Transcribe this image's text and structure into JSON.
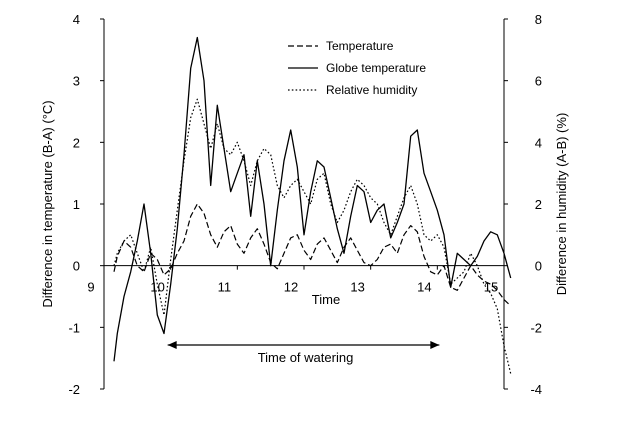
{
  "chart_data": {
    "type": "line",
    "title": "",
    "xlabel": "Time",
    "ylabel_left": "Difference in temperature (B-A) (°C)",
    "ylabel_right": "Difference in humidity (A-B) (%)",
    "xlim": [
      9,
      15
    ],
    "ylim_left": [
      -2,
      4
    ],
    "ylim_right": [
      -4,
      8
    ],
    "x_ticks": [
      9,
      10,
      11,
      12,
      13,
      14,
      15
    ],
    "y_ticks_left": [
      -2,
      -1,
      0,
      1,
      2,
      3,
      4
    ],
    "y_ticks_right": [
      -4,
      -2,
      0,
      2,
      4,
      6,
      8
    ],
    "grid": false,
    "legend_position": "top-right",
    "annotation": {
      "text": "Time of watering",
      "start": 10.0,
      "end": 14.0
    },
    "series": [
      {
        "name": "Temperature",
        "axis": "left",
        "style": "dashed",
        "color": "#000000",
        "x": [
          9.15,
          9.2,
          9.3,
          9.4,
          9.5,
          9.6,
          9.7,
          9.8,
          9.9,
          10.0,
          10.1,
          10.2,
          10.3,
          10.4,
          10.5,
          10.6,
          10.7,
          10.8,
          10.9,
          11.0,
          11.1,
          11.2,
          11.3,
          11.4,
          11.5,
          11.6,
          11.7,
          11.8,
          11.9,
          12.0,
          12.1,
          12.2,
          12.3,
          12.4,
          12.5,
          12.6,
          12.7,
          12.8,
          12.9,
          13.0,
          13.1,
          13.2,
          13.3,
          13.4,
          13.5,
          13.6,
          13.7,
          13.8,
          13.9,
          14.0,
          14.1,
          14.2,
          14.3,
          14.4,
          14.5,
          14.6,
          14.7,
          14.8,
          14.9,
          15.0,
          15.1
        ],
        "y": [
          -0.1,
          0.15,
          0.4,
          0.3,
          0.0,
          -0.1,
          0.2,
          0.1,
          -0.15,
          -0.05,
          0.2,
          0.4,
          0.8,
          1.0,
          0.85,
          0.5,
          0.3,
          0.55,
          0.65,
          0.35,
          0.2,
          0.45,
          0.6,
          0.35,
          0.05,
          -0.05,
          0.2,
          0.45,
          0.5,
          0.25,
          0.1,
          0.35,
          0.45,
          0.25,
          0.05,
          0.3,
          0.45,
          0.25,
          0.05,
          0.0,
          0.1,
          0.3,
          0.35,
          0.2,
          0.5,
          0.65,
          0.55,
          0.15,
          -0.1,
          -0.15,
          0.0,
          -0.35,
          -0.4,
          -0.2,
          0.0,
          -0.15,
          -0.25,
          -0.3,
          -0.4,
          -0.55,
          -0.65
        ]
      },
      {
        "name": "Globe temperature",
        "axis": "left",
        "style": "solid",
        "color": "#000000",
        "x": [
          9.15,
          9.2,
          9.3,
          9.4,
          9.5,
          9.6,
          9.7,
          9.8,
          9.9,
          10.0,
          10.1,
          10.2,
          10.3,
          10.4,
          10.5,
          10.6,
          10.7,
          10.8,
          10.9,
          11.0,
          11.1,
          11.2,
          11.3,
          11.4,
          11.5,
          11.6,
          11.7,
          11.8,
          11.9,
          12.0,
          12.1,
          12.2,
          12.3,
          12.4,
          12.5,
          12.6,
          12.7,
          12.8,
          12.9,
          13.0,
          13.1,
          13.2,
          13.3,
          13.4,
          13.5,
          13.6,
          13.7,
          13.8,
          13.9,
          14.0,
          14.1,
          14.2,
          14.3,
          14.4,
          14.5,
          14.6,
          14.7,
          14.8,
          14.9,
          15.0,
          15.1
        ],
        "y": [
          -1.55,
          -1.1,
          -0.5,
          -0.1,
          0.4,
          1.0,
          0.2,
          -0.8,
          -1.1,
          -0.3,
          0.6,
          1.8,
          3.2,
          3.7,
          3.0,
          1.3,
          2.6,
          1.9,
          1.2,
          1.5,
          1.8,
          0.8,
          1.7,
          1.0,
          0.0,
          0.9,
          1.7,
          2.2,
          1.6,
          0.5,
          1.2,
          1.7,
          1.6,
          1.1,
          0.6,
          0.2,
          0.8,
          1.3,
          1.2,
          0.7,
          0.9,
          1.0,
          0.45,
          0.7,
          1.0,
          2.1,
          2.2,
          1.5,
          1.2,
          0.9,
          0.5,
          -0.35,
          0.2,
          0.1,
          0.0,
          0.15,
          0.4,
          0.55,
          0.5,
          0.2,
          -0.2
        ]
      },
      {
        "name": "Relative humidity",
        "axis": "right",
        "style": "dotted",
        "color": "#000000",
        "x": [
          9.15,
          9.2,
          9.3,
          9.4,
          9.5,
          9.6,
          9.7,
          9.8,
          9.9,
          10.0,
          10.1,
          10.2,
          10.3,
          10.4,
          10.5,
          10.6,
          10.7,
          10.8,
          10.9,
          11.0,
          11.1,
          11.2,
          11.3,
          11.4,
          11.5,
          11.6,
          11.7,
          11.8,
          11.9,
          12.0,
          12.1,
          12.2,
          12.3,
          12.4,
          12.5,
          12.6,
          12.7,
          12.8,
          12.9,
          13.0,
          13.1,
          13.2,
          13.3,
          13.4,
          13.5,
          13.6,
          13.7,
          13.8,
          13.9,
          14.0,
          14.1,
          14.2,
          14.3,
          14.4,
          14.5,
          14.6,
          14.7,
          14.8,
          14.9,
          15.0,
          15.1
        ],
        "y": [
          0.0,
          0.4,
          0.8,
          1.0,
          0.4,
          -0.2,
          0.6,
          -0.6,
          -1.6,
          0.2,
          1.8,
          3.4,
          4.8,
          5.4,
          4.6,
          3.8,
          4.6,
          3.8,
          3.6,
          4.0,
          3.4,
          2.6,
          3.4,
          3.8,
          3.6,
          2.6,
          2.2,
          2.6,
          2.8,
          2.4,
          2.0,
          2.8,
          3.0,
          2.0,
          1.4,
          1.8,
          2.4,
          2.8,
          2.6,
          2.2,
          2.0,
          1.4,
          1.0,
          1.6,
          2.2,
          2.6,
          2.0,
          1.0,
          0.8,
          1.0,
          0.6,
          -0.6,
          -0.4,
          -0.2,
          0.4,
          0.0,
          -0.6,
          -0.9,
          -1.4,
          -2.6,
          -3.5
        ]
      }
    ]
  }
}
